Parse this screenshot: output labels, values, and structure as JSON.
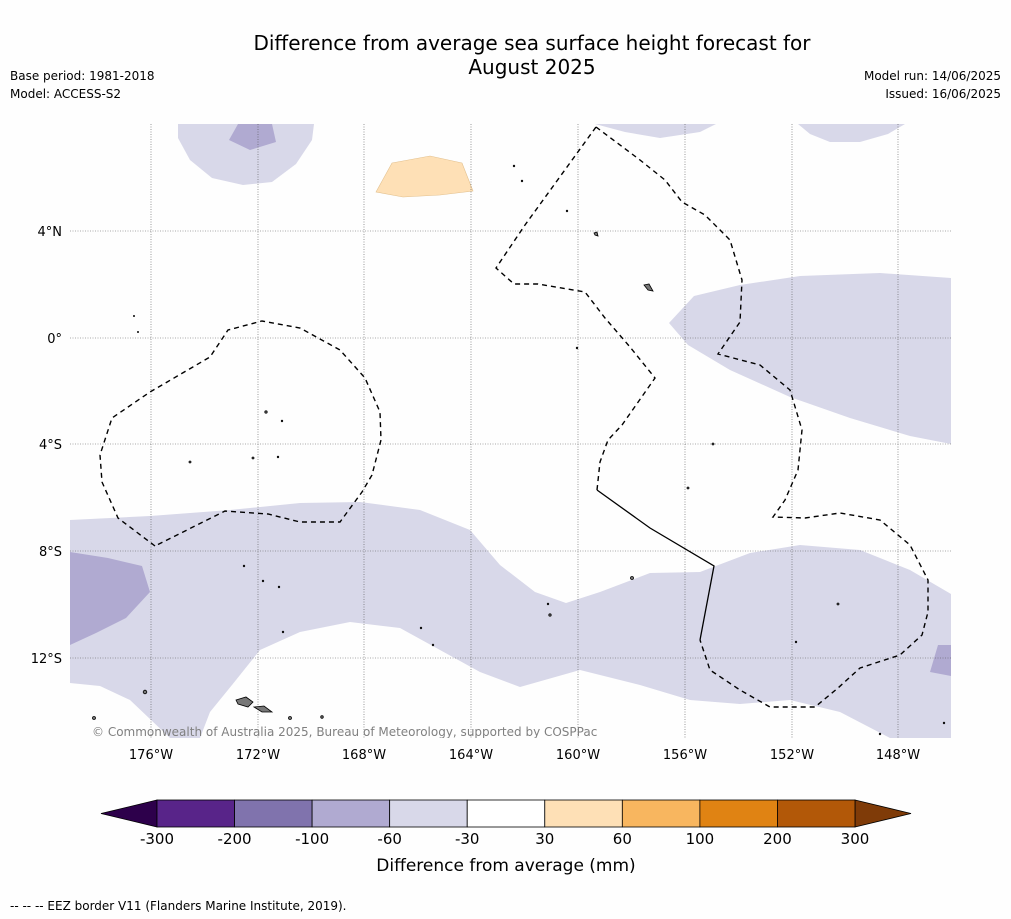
{
  "title_line1": "Difference from average sea surface height forecast for",
  "title_line2": "August 2025",
  "base_period": "Base period: 1981-2018",
  "model": "Model: ACCESS-S2",
  "model_run": "Model run: 14/06/2025",
  "issued": "Issued: 16/06/2025",
  "copyright": "© Commonwealth of Australia 2025, Bureau of Meteorology, supported by COSPPac",
  "footer_note": "--  --  -- EEZ border V11 (Flanders Marine Institute, 2019).",
  "lat_labels": [
    "4°N",
    "0°",
    "4°S",
    "8°S",
    "12°S"
  ],
  "lon_labels": [
    "176°W",
    "172°W",
    "168°W",
    "164°W",
    "160°W",
    "156°W",
    "152°W",
    "148°W"
  ],
  "colorbar": {
    "title": "Difference from average (mm)",
    "tick_labels": [
      "-300",
      "-200",
      "-100",
      "-60",
      "-30",
      "30",
      "60",
      "100",
      "200",
      "300"
    ],
    "colors": [
      "#582489",
      "#8073ad",
      "#b0aad1",
      "#d8d8e9",
      "#ffffff",
      "#fee0b6",
      "#f8b65f",
      "#e08313",
      "#b25808"
    ],
    "under_color": "#2d004b",
    "over_color": "#7f3b08"
  }
}
